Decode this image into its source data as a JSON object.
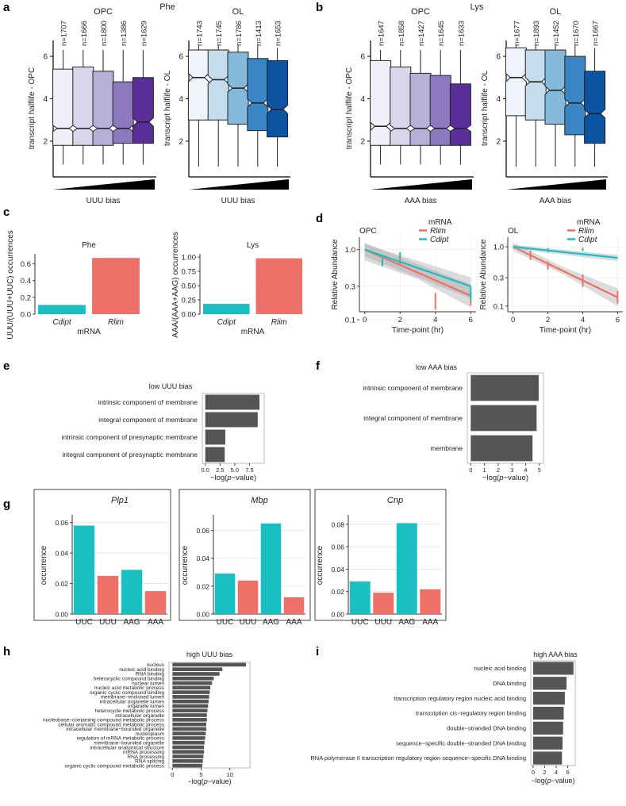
{
  "figure_labels": [
    "a",
    "b",
    "c",
    "d",
    "e",
    "f",
    "g",
    "h",
    "i"
  ],
  "colors": {
    "teal": "#1ABFC2",
    "salmon": "#EF6F69",
    "bar_gray": "#555555",
    "purples": [
      "#F0EFF8",
      "#D9D6EB",
      "#B6AFD8",
      "#8C79BE",
      "#5B2E9A"
    ],
    "blues": [
      "#EFF4FB",
      "#C4DCEC",
      "#84B9DC",
      "#3A85C5",
      "#0A54A1"
    ]
  },
  "chart_data": [
    {
      "id": "a-opc",
      "type": "boxplot",
      "panel": "a",
      "group": "OPC",
      "header": "Phe",
      "ylabel": "transcript halflife - OPC",
      "xlabel": "UUU bias",
      "ylim": [
        0.5,
        6.6
      ],
      "yticks": [
        2,
        4,
        6
      ],
      "n_labels": [
        "n=1707",
        "n=1666",
        "n=1800",
        "n=1386",
        "n=1629"
      ],
      "boxes": [
        {
          "whislo": 0.9,
          "q1": 1.8,
          "med": 2.6,
          "q3": 5.4,
          "whishi": 6.3,
          "notch": [
            2.45,
            2.75
          ]
        },
        {
          "whislo": 0.9,
          "q1": 1.8,
          "med": 2.6,
          "q3": 5.5,
          "whishi": 6.3,
          "notch": [
            2.45,
            2.75
          ]
        },
        {
          "whislo": 0.9,
          "q1": 1.8,
          "med": 2.6,
          "q3": 5.3,
          "whishi": 6.3,
          "notch": [
            2.45,
            2.75
          ]
        },
        {
          "whislo": 0.9,
          "q1": 1.9,
          "med": 2.6,
          "q3": 4.8,
          "whishi": 6.3,
          "notch": [
            2.45,
            2.75
          ]
        },
        {
          "whislo": 0.9,
          "q1": 1.9,
          "med": 2.9,
          "q3": 5.0,
          "whishi": 6.3,
          "notch": [
            2.7,
            3.1
          ]
        }
      ]
    },
    {
      "id": "a-ol",
      "type": "boxplot",
      "panel": "a",
      "group": "OL",
      "ylabel": "transcript halflife - OL",
      "xlabel": "UUU bias",
      "ylim": [
        0.5,
        6.6
      ],
      "yticks": [
        2,
        4,
        6
      ],
      "n_labels": [
        "n=1743",
        "n=1745",
        "n=1786",
        "n=1413",
        "n=1653"
      ],
      "boxes": [
        {
          "whislo": 0.8,
          "q1": 3.0,
          "med": 5.0,
          "q3": 6.3,
          "whishi": 6.5,
          "notch": [
            4.8,
            5.2
          ]
        },
        {
          "whislo": 0.8,
          "q1": 3.0,
          "med": 4.9,
          "q3": 6.3,
          "whishi": 6.5,
          "notch": [
            4.7,
            5.1
          ]
        },
        {
          "whislo": 0.8,
          "q1": 2.8,
          "med": 4.5,
          "q3": 6.2,
          "whishi": 6.5,
          "notch": [
            4.3,
            4.7
          ]
        },
        {
          "whislo": 0.8,
          "q1": 2.5,
          "med": 3.8,
          "q3": 5.9,
          "whishi": 6.5,
          "notch": [
            3.6,
            4.0
          ]
        },
        {
          "whislo": 0.8,
          "q1": 2.2,
          "med": 3.5,
          "q3": 5.8,
          "whishi": 6.4,
          "notch": [
            3.3,
            3.7
          ]
        }
      ]
    },
    {
      "id": "b-opc",
      "type": "boxplot",
      "panel": "b",
      "group": "OPC",
      "header": "Lys",
      "ylabel": "transcript halflife - OPC",
      "xlabel": "AAA bias",
      "ylim": [
        0.5,
        6.6
      ],
      "yticks": [
        2,
        4,
        6
      ],
      "n_labels": [
        "n=1647",
        "n=1858",
        "n=1427",
        "n=1645",
        "n=1633"
      ],
      "boxes": [
        {
          "whislo": 0.9,
          "q1": 1.8,
          "med": 2.7,
          "q3": 5.8,
          "whishi": 6.3,
          "notch": [
            2.5,
            2.9
          ]
        },
        {
          "whislo": 0.9,
          "q1": 1.8,
          "med": 2.6,
          "q3": 5.5,
          "whishi": 6.3,
          "notch": [
            2.45,
            2.75
          ]
        },
        {
          "whislo": 0.9,
          "q1": 1.8,
          "med": 2.6,
          "q3": 5.2,
          "whishi": 6.3,
          "notch": [
            2.45,
            2.75
          ]
        },
        {
          "whislo": 0.9,
          "q1": 1.8,
          "med": 2.6,
          "q3": 5.1,
          "whishi": 6.3,
          "notch": [
            2.45,
            2.75
          ]
        },
        {
          "whislo": 0.9,
          "q1": 1.8,
          "med": 2.6,
          "q3": 4.7,
          "whishi": 6.3,
          "notch": [
            2.45,
            2.75
          ]
        }
      ]
    },
    {
      "id": "b-ol",
      "type": "boxplot",
      "panel": "b",
      "group": "OL",
      "ylabel": "transcript halflife - OL",
      "xlabel": "AAA bias",
      "ylim": [
        0.5,
        6.6
      ],
      "yticks": [
        2,
        4,
        6
      ],
      "n_labels": [
        "n=1677",
        "n=1893",
        "n=1452",
        "n=1670",
        "n=1667"
      ],
      "boxes": [
        {
          "whislo": 0.8,
          "q1": 3.2,
          "med": 5.0,
          "q3": 6.4,
          "whishi": 6.5,
          "notch": [
            4.8,
            5.2
          ]
        },
        {
          "whislo": 0.8,
          "q1": 3.0,
          "med": 4.8,
          "q3": 6.3,
          "whishi": 6.5,
          "notch": [
            4.6,
            5.0
          ]
        },
        {
          "whislo": 0.8,
          "q1": 2.8,
          "med": 4.4,
          "q3": 6.3,
          "whishi": 6.5,
          "notch": [
            4.2,
            4.6
          ]
        },
        {
          "whislo": 0.8,
          "q1": 2.3,
          "med": 3.8,
          "q3": 6.0,
          "whishi": 6.5,
          "notch": [
            3.6,
            4.0
          ]
        },
        {
          "whislo": 0.8,
          "q1": 1.9,
          "med": 3.3,
          "q3": 5.3,
          "whishi": 6.4,
          "notch": [
            3.1,
            3.5
          ]
        }
      ]
    },
    {
      "id": "c-phe",
      "type": "bar",
      "panel": "c",
      "title": "Phe",
      "ylabel": "UUU/(UUU+UUC) occurrences",
      "xlabel": "mRNA",
      "categories": [
        "Cdipt",
        "Rlim"
      ],
      "values": [
        0.11,
        0.67
      ],
      "ylim": [
        0,
        0.7
      ],
      "yticks": [
        0.0,
        0.2,
        0.4,
        0.6
      ],
      "ytick_labels": [
        "0.0",
        "0.2",
        "0.4",
        "0.6"
      ]
    },
    {
      "id": "c-lys",
      "type": "bar",
      "panel": "c",
      "title": "Lys",
      "ylabel": "AAA/(AAA+AAG) occurrences",
      "xlabel": "mRNA",
      "categories": [
        "Cdipt",
        "Rlim"
      ],
      "values": [
        0.18,
        0.98
      ],
      "ylim": [
        0,
        1.03
      ],
      "yticks": [
        0.0,
        0.25,
        0.5,
        0.75,
        1.0
      ],
      "ytick_labels": [
        "0.00",
        "0.25",
        "0.50",
        "0.75",
        "1.00"
      ]
    },
    {
      "id": "d-opc",
      "type": "line",
      "panel": "d",
      "title": "OPC",
      "ylabel": "Relative Abundance",
      "xlabel": "Time-point (hr)",
      "legend_title": "mRNA",
      "legend": [
        "Rlim",
        "Cdipt"
      ],
      "legend_position": "top-right",
      "xlim": [
        -0.3,
        6.3
      ],
      "xticks": [
        0,
        2,
        4,
        6
      ],
      "ylim_log": [
        0.13,
        1.5
      ],
      "yticks": [
        0.1,
        0.3,
        1.0
      ],
      "ytick_labels": [
        "0.1",
        "0.3",
        "1.0"
      ],
      "series": [
        {
          "name": "Rlim",
          "fit": [
            [
              0,
              1.0
            ],
            [
              6,
              0.22
            ]
          ],
          "band": [
            [
              0,
              0.7,
              1.25
            ],
            [
              3,
              0.38,
              0.62
            ],
            [
              6,
              0.15,
              0.32
            ]
          ],
          "points": [
            [
              1,
              0.7,
              0.6,
              0.82
            ],
            [
              2,
              0.72,
              0.62,
              0.85
            ],
            [
              4,
              0.18,
              0.14,
              0.24
            ],
            [
              6,
              0.2,
              0.16,
              0.25
            ]
          ]
        },
        {
          "name": "Cdipt",
          "fit": [
            [
              0,
              1.0
            ],
            [
              6,
              0.3
            ]
          ],
          "band": [
            [
              0,
              0.8,
              1.2
            ],
            [
              6,
              0.2,
              0.4
            ]
          ],
          "points": [
            [
              1,
              0.68,
              0.58,
              0.78
            ],
            [
              2,
              0.84,
              0.76,
              0.92
            ],
            [
              6,
              0.25,
              0.19,
              0.3
            ]
          ]
        }
      ]
    },
    {
      "id": "d-ol",
      "type": "line",
      "panel": "d",
      "title": "OL",
      "ylabel": "Relative Abundance",
      "xlabel": "Time-point (hr)",
      "legend_title": "mRNA",
      "legend": [
        "Rlim",
        "Cdipt"
      ],
      "legend_position": "top-right",
      "xlim": [
        -0.3,
        6.3
      ],
      "xticks": [
        0,
        2,
        4,
        6
      ],
      "ylim_log": [
        0.08,
        1.45
      ],
      "yticks": [
        0.1,
        0.3,
        1.0
      ],
      "ytick_labels": [
        "0.1",
        "0.3",
        "1.0"
      ],
      "series": [
        {
          "name": "Rlim",
          "fit": [
            [
              0,
              1.0
            ],
            [
              6,
              0.14
            ]
          ],
          "band": [
            [
              0,
              0.85,
              1.18
            ],
            [
              3,
              0.33,
              0.44
            ],
            [
              6,
              0.1,
              0.2
            ]
          ],
          "points": [
            [
              1,
              0.72,
              0.6,
              0.85
            ],
            [
              2,
              0.48,
              0.41,
              0.56
            ],
            [
              4,
              0.27,
              0.21,
              0.34
            ],
            [
              6,
              0.14,
              0.11,
              0.18
            ]
          ]
        },
        {
          "name": "Cdipt",
          "fit": [
            [
              0,
              1.0
            ],
            [
              6,
              0.65
            ]
          ],
          "band": [
            [
              0,
              0.92,
              1.08
            ],
            [
              6,
              0.57,
              0.73
            ]
          ],
          "points": [
            [
              2,
              0.88,
              0.82,
              0.95
            ],
            [
              4,
              0.9,
              0.85,
              0.96
            ]
          ]
        }
      ]
    },
    {
      "id": "e",
      "type": "bar",
      "orientation": "horizontal",
      "panel": "e",
      "title": "low UUU bias",
      "xlabel": "−log(p−value)",
      "categories": [
        "intrinsic component of membrane",
        "integral component of membrane",
        "intrinsic component of presynaptic membrane",
        "integral component of presynaptic membrane"
      ],
      "values": [
        9.2,
        8.9,
        3.4,
        3.3
      ],
      "xlim": [
        -0.5,
        10.0
      ],
      "xticks": [
        0,
        2.5,
        5,
        7.5
      ],
      "xtick_labels": [
        "0.0",
        "2.5",
        "5.0",
        "7.5"
      ]
    },
    {
      "id": "f",
      "type": "bar",
      "orientation": "horizontal",
      "panel": "f",
      "title": "low AAA bias",
      "xlabel": "−log(p−value)",
      "categories": [
        "intrinsic component of membrane",
        "integral component of membrane",
        "membrane"
      ],
      "values": [
        4.95,
        4.8,
        4.5
      ],
      "xlim": [
        -0.25,
        5.3
      ],
      "xticks": [
        0,
        1,
        2,
        3,
        4,
        5
      ],
      "xtick_labels": [
        "0",
        "1",
        "2",
        "3",
        "4",
        "5"
      ]
    },
    {
      "id": "g-plp1",
      "type": "bar",
      "panel": "g",
      "title": "Plp1",
      "ylabel": "occurrence",
      "categories": [
        "UUC",
        "UUU",
        "AAG",
        "AAA"
      ],
      "values": [
        0.058,
        0.025,
        0.029,
        0.015
      ],
      "ylim": [
        0,
        0.064
      ],
      "yticks": [
        0,
        0.02,
        0.04,
        0.06
      ],
      "ytick_labels": [
        "0.00",
        "0.02",
        "0.04",
        "0.06"
      ]
    },
    {
      "id": "g-mbp",
      "type": "bar",
      "panel": "g",
      "title": "Mbp",
      "ylabel": "occurrence",
      "categories": [
        "UUC",
        "UUU",
        "AAG",
        "AAA"
      ],
      "values": [
        0.029,
        0.024,
        0.065,
        0.012
      ],
      "ylim": [
        0,
        0.07
      ],
      "yticks": [
        0,
        0.02,
        0.04,
        0.06
      ],
      "ytick_labels": [
        "0.00",
        "0.02",
        "0.04",
        "0.06"
      ]
    },
    {
      "id": "g-cnp",
      "type": "bar",
      "panel": "g",
      "title": "Cnp",
      "ylabel": "occurrence",
      "categories": [
        "UUC",
        "UUU",
        "AAG",
        "AAA"
      ],
      "values": [
        0.029,
        0.019,
        0.081,
        0.022
      ],
      "ylim": [
        0,
        0.087
      ],
      "yticks": [
        0,
        0.02,
        0.04,
        0.06,
        0.08
      ],
      "ytick_labels": [
        "0.00",
        "0.02",
        "0.04",
        "0.06",
        "0.08"
      ]
    },
    {
      "id": "h",
      "type": "bar",
      "orientation": "horizontal",
      "panel": "h",
      "title": "high UUU bias",
      "xlabel": "−log(p−value)",
      "categories": [
        "nucleus",
        "nucleic acid binding",
        "RNA binding",
        "heterocyclic compound binding",
        "nuclear lumen",
        "nucleic acid metabolic process",
        "organic cyclic compound binding",
        "membrane−enclosed lumen",
        "intracellular organelle lumen",
        "organelle lumen",
        "heterocycle metabolic process",
        "intracellular organelle",
        "nucleobase−containing compound metabolic process",
        "cellular aromatic compound metabolic process",
        "intracellular membrane−bounded organelle",
        "nucleoplasm",
        "regulation of mRNA metabolic process",
        "membrane−bounded organelle",
        "intracellular anatomical structure",
        "mRNA processing",
        "RNA processing",
        "RNA splicing",
        "organic cyclic compound metabolic process"
      ],
      "values": [
        12.8,
        8.7,
        8.2,
        7.2,
        6.9,
        6.6,
        6.5,
        6.4,
        6.3,
        6.2,
        6.1,
        6.0,
        6.0,
        5.9,
        5.9,
        5.8,
        5.7,
        5.6,
        5.5,
        5.5,
        5.4,
        5.3,
        5.2
      ],
      "xlim": [
        -0.6,
        13.5
      ],
      "xticks": [
        0,
        5,
        10
      ],
      "xtick_labels": [
        "0",
        "5",
        "10"
      ]
    },
    {
      "id": "i",
      "type": "bar",
      "orientation": "horizontal",
      "panel": "i",
      "title": "high AAA bias",
      "xlabel": "−log(p−value)",
      "categories": [
        "nucleic acid binding",
        "DNA binding",
        "transcription regulatory region nucleic acid binding",
        "transcription cis−regulatory region binding",
        "double−stranded DNA binding",
        "sequence−specific double−stranded DNA binding",
        "RNA polymerase II transcription regulatory region sequence−specific DNA binding"
      ],
      "values": [
        7.0,
        5.8,
        5.5,
        5.3,
        5.2,
        5.1,
        5.0
      ],
      "xlim": [
        -0.4,
        7.3
      ],
      "xticks": [
        0,
        2,
        4,
        6
      ],
      "xtick_labels": [
        "0",
        "2",
        "4",
        "6"
      ]
    }
  ]
}
